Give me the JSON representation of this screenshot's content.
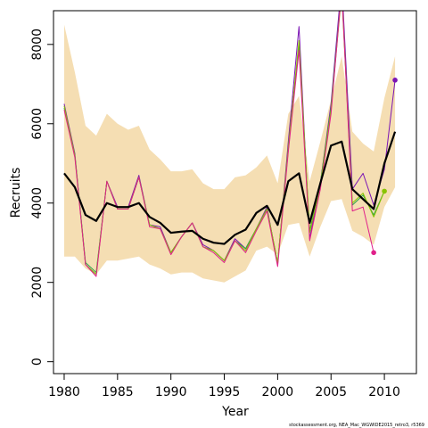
{
  "chart_data": {
    "type": "line",
    "title": "",
    "xlabel": "Year",
    "ylabel": "Recruits",
    "footnote": "stockassessment.org, NEA_Mac_WGWIDE2015_retro3, r5369",
    "xlim": [
      1979,
      2013
    ],
    "ylim": [
      -300,
      8850
    ],
    "x_ticks": [
      1980,
      1985,
      1990,
      1995,
      2000,
      2005,
      2010
    ],
    "y_ticks": [
      0,
      2000,
      4000,
      6000,
      8000
    ],
    "grid": false,
    "legend": "none",
    "colors": {
      "band": "#f5deb3",
      "main": "#000000",
      "retro": [
        "#7a14b4",
        "#2aa14a",
        "#88c400",
        "#e0208a"
      ]
    },
    "years": [
      1980,
      1981,
      1982,
      1983,
      1984,
      1985,
      1986,
      1987,
      1988,
      1989,
      1990,
      1991,
      1992,
      1993,
      1994,
      1995,
      1996,
      1997,
      1998,
      1999,
      2000,
      2001,
      2002,
      2003,
      2004,
      2005,
      2006,
      2007,
      2008,
      2009,
      2010,
      2011
    ],
    "band": {
      "upper": [
        8500,
        7300,
        5950,
        5700,
        6250,
        6000,
        5850,
        5950,
        5350,
        5100,
        4800,
        4800,
        4850,
        4500,
        4350,
        4350,
        4650,
        4700,
        4900,
        5200,
        4500,
        6250,
        6700,
        4550,
        5550,
        6600,
        7700,
        5800,
        5500,
        5300,
        6650,
        7700
      ],
      "lower": [
        2650,
        2650,
        2350,
        2200,
        2550,
        2550,
        2600,
        2650,
        2450,
        2350,
        2200,
        2250,
        2250,
        2100,
        2050,
        2000,
        2150,
        2300,
        2800,
        2900,
        2700,
        3450,
        3500,
        2650,
        3400,
        4050,
        4100,
        3300,
        3150,
        2950,
        3900,
        4400
      ]
    },
    "main": [
      4750,
      4400,
      3700,
      3550,
      4000,
      3900,
      3900,
      4000,
      3650,
      3500,
      3250,
      3280,
      3300,
      3100,
      3000,
      2970,
      3200,
      3330,
      3750,
      3930,
      3450,
      4550,
      4750,
      3500,
      4500,
      5450,
      5550,
      4350,
      4100,
      3850,
      5000,
      5800
    ],
    "series": [
      {
        "x": [
          1980,
          1981,
          1982,
          1983,
          1984,
          1985,
          1986,
          1987,
          1988,
          1989,
          1990,
          1991,
          1992,
          1993,
          1994,
          1995,
          1996,
          1997,
          1998,
          1999,
          2000,
          2001,
          2002,
          2003,
          2004,
          2005,
          2006,
          2007,
          2008,
          2009,
          2010,
          2011
        ],
        "values": [
          6500,
          5250,
          2450,
          2200,
          4550,
          3900,
          3900,
          4700,
          3450,
          3400,
          2750,
          3150,
          3500,
          2950,
          2800,
          2550,
          3100,
          2850,
          3350,
          3900,
          2450,
          5550,
          8450,
          3100,
          4500,
          6500,
          9600,
          4350,
          4750,
          3950,
          4850,
          7100
        ]
      },
      {
        "x": [
          1980,
          1981,
          1982,
          1983,
          1984,
          1985,
          1986,
          1987,
          1988,
          1989,
          1990,
          1991,
          1992,
          1993,
          1994,
          1995,
          1996,
          1997,
          1998,
          1999,
          2000,
          2001,
          2002,
          2003,
          2004,
          2005,
          2006,
          2007,
          2008,
          2009,
          2010
        ],
        "values": [
          6400,
          5200,
          2500,
          2250,
          4550,
          3850,
          3850,
          4650,
          3450,
          3350,
          2750,
          3150,
          3500,
          2900,
          2800,
          2550,
          3050,
          2850,
          3350,
          3850,
          2500,
          5350,
          8000,
          3300,
          4500,
          6400,
          9400,
          3950,
          4200,
          3700,
          4300
        ]
      },
      {
        "x": [
          1980,
          1981,
          1982,
          1983,
          1984,
          1985,
          1986,
          1987,
          1988,
          1989,
          1990,
          1991,
          1992,
          1993,
          1994,
          1995,
          1996,
          1997,
          1998,
          1999,
          2000,
          2001,
          2002,
          2003,
          2004,
          2005,
          2006,
          2007,
          2008,
          2009,
          2010
        ],
        "values": [
          6450,
          5200,
          2450,
          2200,
          4550,
          3850,
          3850,
          4650,
          3450,
          3350,
          2750,
          3150,
          3500,
          2900,
          2800,
          2550,
          3050,
          2800,
          3350,
          3850,
          2500,
          5400,
          8100,
          3250,
          4450,
          6350,
          9300,
          4000,
          4250,
          3650,
          4300
        ]
      },
      {
        "x": [
          1980,
          1981,
          1982,
          1983,
          1984,
          1985,
          1986,
          1987,
          1988,
          1989,
          1990,
          1991,
          1992,
          1993,
          1994,
          1995,
          1996,
          1997,
          1998,
          1999,
          2000,
          2001,
          2002,
          2003,
          2004,
          2005,
          2006,
          2007,
          2008,
          2009
        ],
        "values": [
          6350,
          5150,
          2450,
          2150,
          4550,
          3850,
          3850,
          4650,
          3400,
          3350,
          2700,
          3150,
          3500,
          2900,
          2750,
          2500,
          3050,
          2750,
          3300,
          3800,
          2400,
          5300,
          7850,
          3050,
          4350,
          6250,
          9400,
          3800,
          3900,
          2750
        ]
      }
    ],
    "endpoints": [
      {
        "year": 2011,
        "value": 7100,
        "color": "#7a14b4"
      },
      {
        "year": 2010,
        "value": 4300,
        "color": "#88c400"
      },
      {
        "year": 2009,
        "value": 2750,
        "color": "#e0208a"
      }
    ]
  }
}
